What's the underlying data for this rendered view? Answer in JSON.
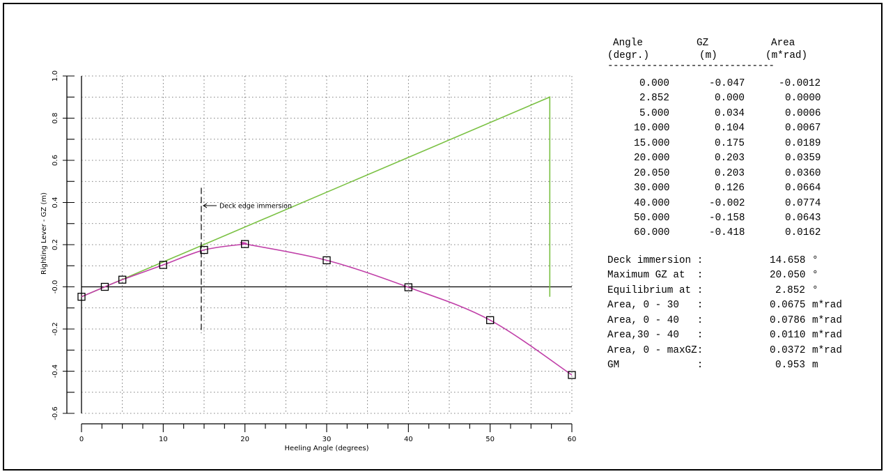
{
  "chart_data": {
    "type": "line",
    "xlabel": "Heeling Angle (degrees)",
    "ylabel": "Righting Lever - GZ (m)",
    "xlim": [
      0,
      60
    ],
    "ylim": [
      -0.6,
      1.0
    ],
    "x_ticks": [
      0,
      10,
      20,
      30,
      40,
      50,
      60
    ],
    "x_tick_labels": [
      "0",
      "10",
      "20",
      "30",
      "40",
      "50",
      "60"
    ],
    "y_ticks": [
      -0.6,
      -0.4,
      -0.2,
      0.0,
      0.2,
      0.4,
      0.6,
      0.8,
      1.0
    ],
    "y_tick_labels": [
      "-0.6",
      "-0.4",
      "-0.2",
      "-0.0",
      "0.2",
      "0.4",
      "0.6",
      "0.8",
      "1.0"
    ],
    "grid": true,
    "series": [
      {
        "type": "line",
        "color": "#7ac143",
        "x": [
          0,
          57.3,
          57.3
        ],
        "y": [
          -0.047,
          0.9,
          -0.047
        ]
      },
      {
        "type": "line",
        "color": "#c03fa8",
        "markers": "square",
        "x": [
          0,
          2.852,
          5,
          10,
          15,
          20,
          20.05,
          30,
          40,
          50,
          60
        ],
        "y": [
          -0.047,
          0.0,
          0.034,
          0.104,
          0.175,
          0.203,
          0.203,
          0.126,
          -0.002,
          -0.158,
          -0.418
        ]
      }
    ],
    "annotations": [
      {
        "text": "Deck edge immersion",
        "x": 14.658
      }
    ]
  },
  "table": {
    "headers": [
      [
        "Angle",
        "(degr.)"
      ],
      [
        "GZ",
        "(m)"
      ],
      [
        "Area",
        "(m*rad)"
      ]
    ],
    "separator": "------------------------------",
    "rows": [
      [
        "0.000",
        "-0.047",
        "-0.0012"
      ],
      [
        "2.852",
        "0.000",
        "0.0000"
      ],
      [
        "5.000",
        "0.034",
        "0.0006"
      ],
      [
        "10.000",
        "0.104",
        "0.0067"
      ],
      [
        "15.000",
        "0.175",
        "0.0189"
      ],
      [
        "20.000",
        "0.203",
        "0.0359"
      ],
      [
        "20.050",
        "0.203",
        "0.0360"
      ],
      [
        "30.000",
        "0.126",
        "0.0664"
      ],
      [
        "40.000",
        "-0.002",
        "0.0774"
      ],
      [
        "50.000",
        "-0.158",
        "0.0643"
      ],
      [
        "60.000",
        "-0.418",
        "0.0162"
      ]
    ]
  },
  "summary": [
    {
      "label": "Deck immersion :",
      "value": "14.658",
      "unit": "°"
    },
    {
      "label": "Maximum GZ at  :",
      "value": "20.050",
      "unit": "°"
    },
    {
      "label": "Equilibrium at :",
      "value": "2.852",
      "unit": "°"
    },
    {
      "label": "Area, 0 - 30   :",
      "value": "0.0675",
      "unit": "m*rad"
    },
    {
      "label": "Area, 0 - 40   :",
      "value": "0.0786",
      "unit": "m*rad"
    },
    {
      "label": "Area,30 - 40   :",
      "value": "0.0110",
      "unit": "m*rad"
    },
    {
      "label": "Area, 0 - maxGZ:",
      "value": "0.0372",
      "unit": "m*rad"
    },
    {
      "label": "GM             :",
      "value": "0.953",
      "unit": "m"
    }
  ]
}
